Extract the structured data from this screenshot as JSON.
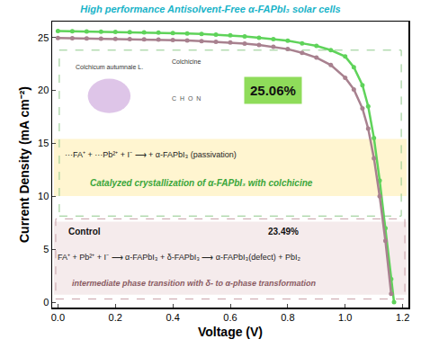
{
  "chart_data": {
    "type": "line",
    "title": "High performance Antisolvent-Free α-FAPbI₃ solar cells",
    "x_label": "Voltage (V)",
    "y_label": "Current Density (mA cm⁻²)",
    "xlim": [
      -0.02,
      1.22
    ],
    "ylim": [
      -0.5,
      26.5
    ],
    "xticks": [
      {
        "value": 0,
        "label": "0.0"
      },
      0.2,
      0.4,
      0.6,
      0.8,
      {
        "value": 1,
        "label": "1.0"
      },
      1.2
    ],
    "yticks": [
      0,
      5,
      10,
      15,
      20,
      25
    ],
    "grid": false,
    "marker": "circle",
    "series": [
      {
        "name": "Colchicine",
        "color": "#5fd35a",
        "x": [
          0,
          0.05,
          0.1,
          0.15,
          0.2,
          0.25,
          0.3,
          0.35,
          0.4,
          0.45,
          0.5,
          0.55,
          0.6,
          0.65,
          0.7,
          0.75,
          0.8,
          0.85,
          0.9,
          0.95,
          1.0,
          1.03,
          1.06,
          1.08,
          1.1,
          1.12,
          1.14,
          1.16,
          1.17
        ],
        "values": [
          25.6,
          25.58,
          25.56,
          25.54,
          25.52,
          25.5,
          25.48,
          25.45,
          25.42,
          25.38,
          25.33,
          25.27,
          25.2,
          25.1,
          24.98,
          24.85,
          24.7,
          24.45,
          24.2,
          23.8,
          23.2,
          22.2,
          20.5,
          18.5,
          15.5,
          11.5,
          7.0,
          2.2,
          0
        ]
      },
      {
        "name": "Control",
        "color": "#a8818f",
        "x": [
          0,
          0.05,
          0.1,
          0.15,
          0.2,
          0.25,
          0.3,
          0.35,
          0.4,
          0.45,
          0.5,
          0.55,
          0.6,
          0.65,
          0.7,
          0.75,
          0.8,
          0.85,
          0.9,
          0.95,
          1.0,
          1.03,
          1.06,
          1.08,
          1.1,
          1.12,
          1.14,
          1.16
        ],
        "values": [
          24.95,
          24.93,
          24.91,
          24.89,
          24.87,
          24.85,
          24.83,
          24.8,
          24.77,
          24.72,
          24.66,
          24.6,
          24.52,
          24.42,
          24.3,
          24.12,
          23.9,
          23.55,
          23.1,
          22.4,
          21.2,
          20.1,
          18.3,
          16.4,
          13.6,
          10.0,
          5.8,
          0.8
        ]
      }
    ],
    "annotations": [
      "Colchicum autumnale L.",
      "Colchicine",
      "C  H  O  N",
      "25.06%",
      "···FA⁺ + ···Pb²⁺ + I⁻ ⟶ + α-FAPbI₃ (passivation)",
      "Catalyzed crystallization of α-FAPbI₃ with colchicine",
      "Control",
      "23.49%",
      "FA⁺ + Pb²⁺ + I⁻ ⟶ α-FAPbI₃ + δ-FAPbI₃ ⟶ α-FAPbI₃(defect) + PbI₂",
      "intermediate phase transition with δ- to α-phase transformation"
    ]
  }
}
